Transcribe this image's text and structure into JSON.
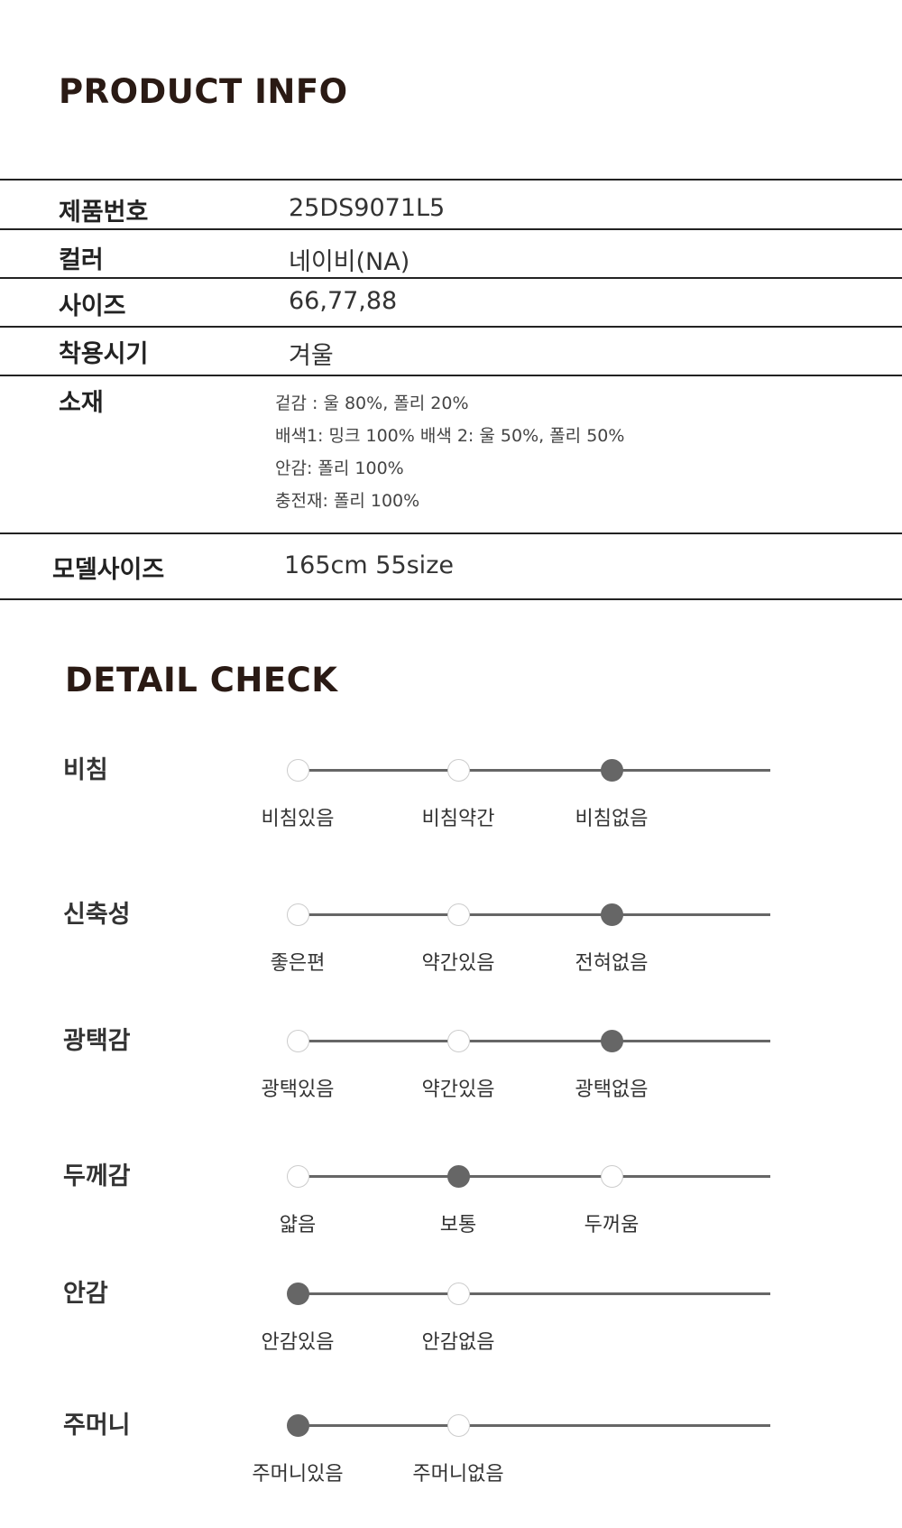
{
  "product_info": {
    "title": "PRODUCT INFO",
    "rows": [
      {
        "label": "제품번호",
        "value": "25DS9071L5"
      },
      {
        "label": "컬러",
        "value": "네이비(NA)"
      },
      {
        "label": "사이즈",
        "value": "66,77,88"
      },
      {
        "label": "착용시기",
        "value": "겨울"
      }
    ],
    "material": {
      "label": "소재",
      "lines": [
        "겉감 : 울 80%, 폴리 20%",
        "배색1: 밍크 100% 배색 2: 울 50%, 폴리 50%",
        "안감: 폴리 100%",
        "충전재: 폴리 100%"
      ]
    },
    "model": {
      "label": "모델사이즈",
      "value": "165cm 55size"
    }
  },
  "detail_check": {
    "title": "DETAIL CHECK",
    "items": [
      {
        "label": "비침",
        "options": [
          "비침있음",
          "비침약간",
          "비침없음"
        ],
        "selected": 2
      },
      {
        "label": "신축성",
        "options": [
          "좋은편",
          "약간있음",
          "전혀없음"
        ],
        "selected": 2
      },
      {
        "label": "광택감",
        "options": [
          "광택있음",
          "약간있음",
          "광택없음"
        ],
        "selected": 2
      },
      {
        "label": "두께감",
        "options": [
          "얇음",
          "보통",
          "두꺼움"
        ],
        "selected": 1
      },
      {
        "label": "안감",
        "options": [
          "안감있음",
          "안감없음"
        ],
        "selected": 0
      },
      {
        "label": "주머니",
        "options": [
          "주머니있음",
          "주머니없음"
        ],
        "selected": 0
      }
    ]
  }
}
